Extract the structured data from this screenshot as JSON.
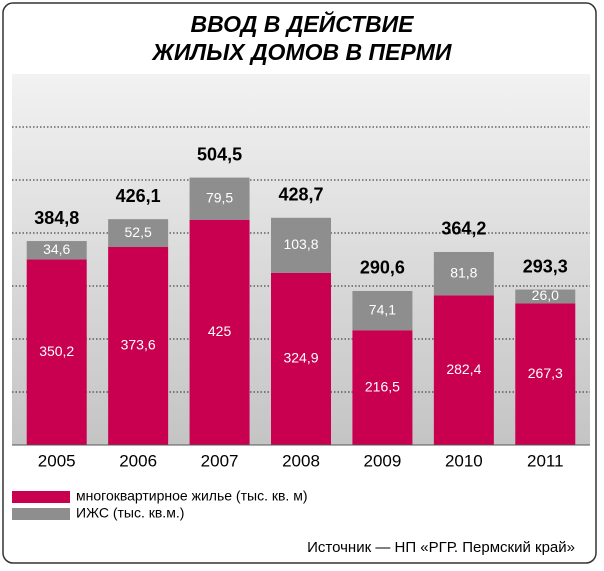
{
  "chart_data": {
    "type": "stacked-bar",
    "title": [
      "ВВОД В ДЕЙСТВИЕ",
      "ЖИЛЫХ ДОМОВ В ПЕРМИ"
    ],
    "categories": [
      "2005",
      "2006",
      "2007",
      "2008",
      "2009",
      "2010",
      "2011"
    ],
    "series": [
      {
        "name": "многоквартирное жилье (тыс. кв. м)",
        "color": "#c8004f",
        "values": [
          350.2,
          373.6,
          425,
          324.9,
          216.5,
          282.4,
          267.3
        ],
        "value_labels": [
          "350,2",
          "373,6",
          "425",
          "324,9",
          "216,5",
          "282,4",
          "267,3"
        ]
      },
      {
        "name": "ИЖС (тыс. кв.м.)",
        "color": "#8e8e8e",
        "values": [
          34.6,
          52.5,
          79.5,
          103.8,
          74.1,
          81.8,
          26.0
        ],
        "value_labels": [
          "34,6",
          "52,5",
          "79,5",
          "103,8",
          "74,1",
          "81,8",
          "26,0"
        ]
      }
    ],
    "totals": {
      "values": [
        384.8,
        426.1,
        504.5,
        428.7,
        290.6,
        364.2,
        293.3
      ],
      "value_labels": [
        "384,8",
        "426,1",
        "504,5",
        "428,7",
        "290,6",
        "364,2",
        "293,3"
      ]
    },
    "ylim": [
      0,
      700
    ],
    "yticks": [
      100,
      200,
      300,
      400,
      500,
      600
    ],
    "grid": true,
    "source": "Источник — НП «РГР. Пермский край»"
  }
}
